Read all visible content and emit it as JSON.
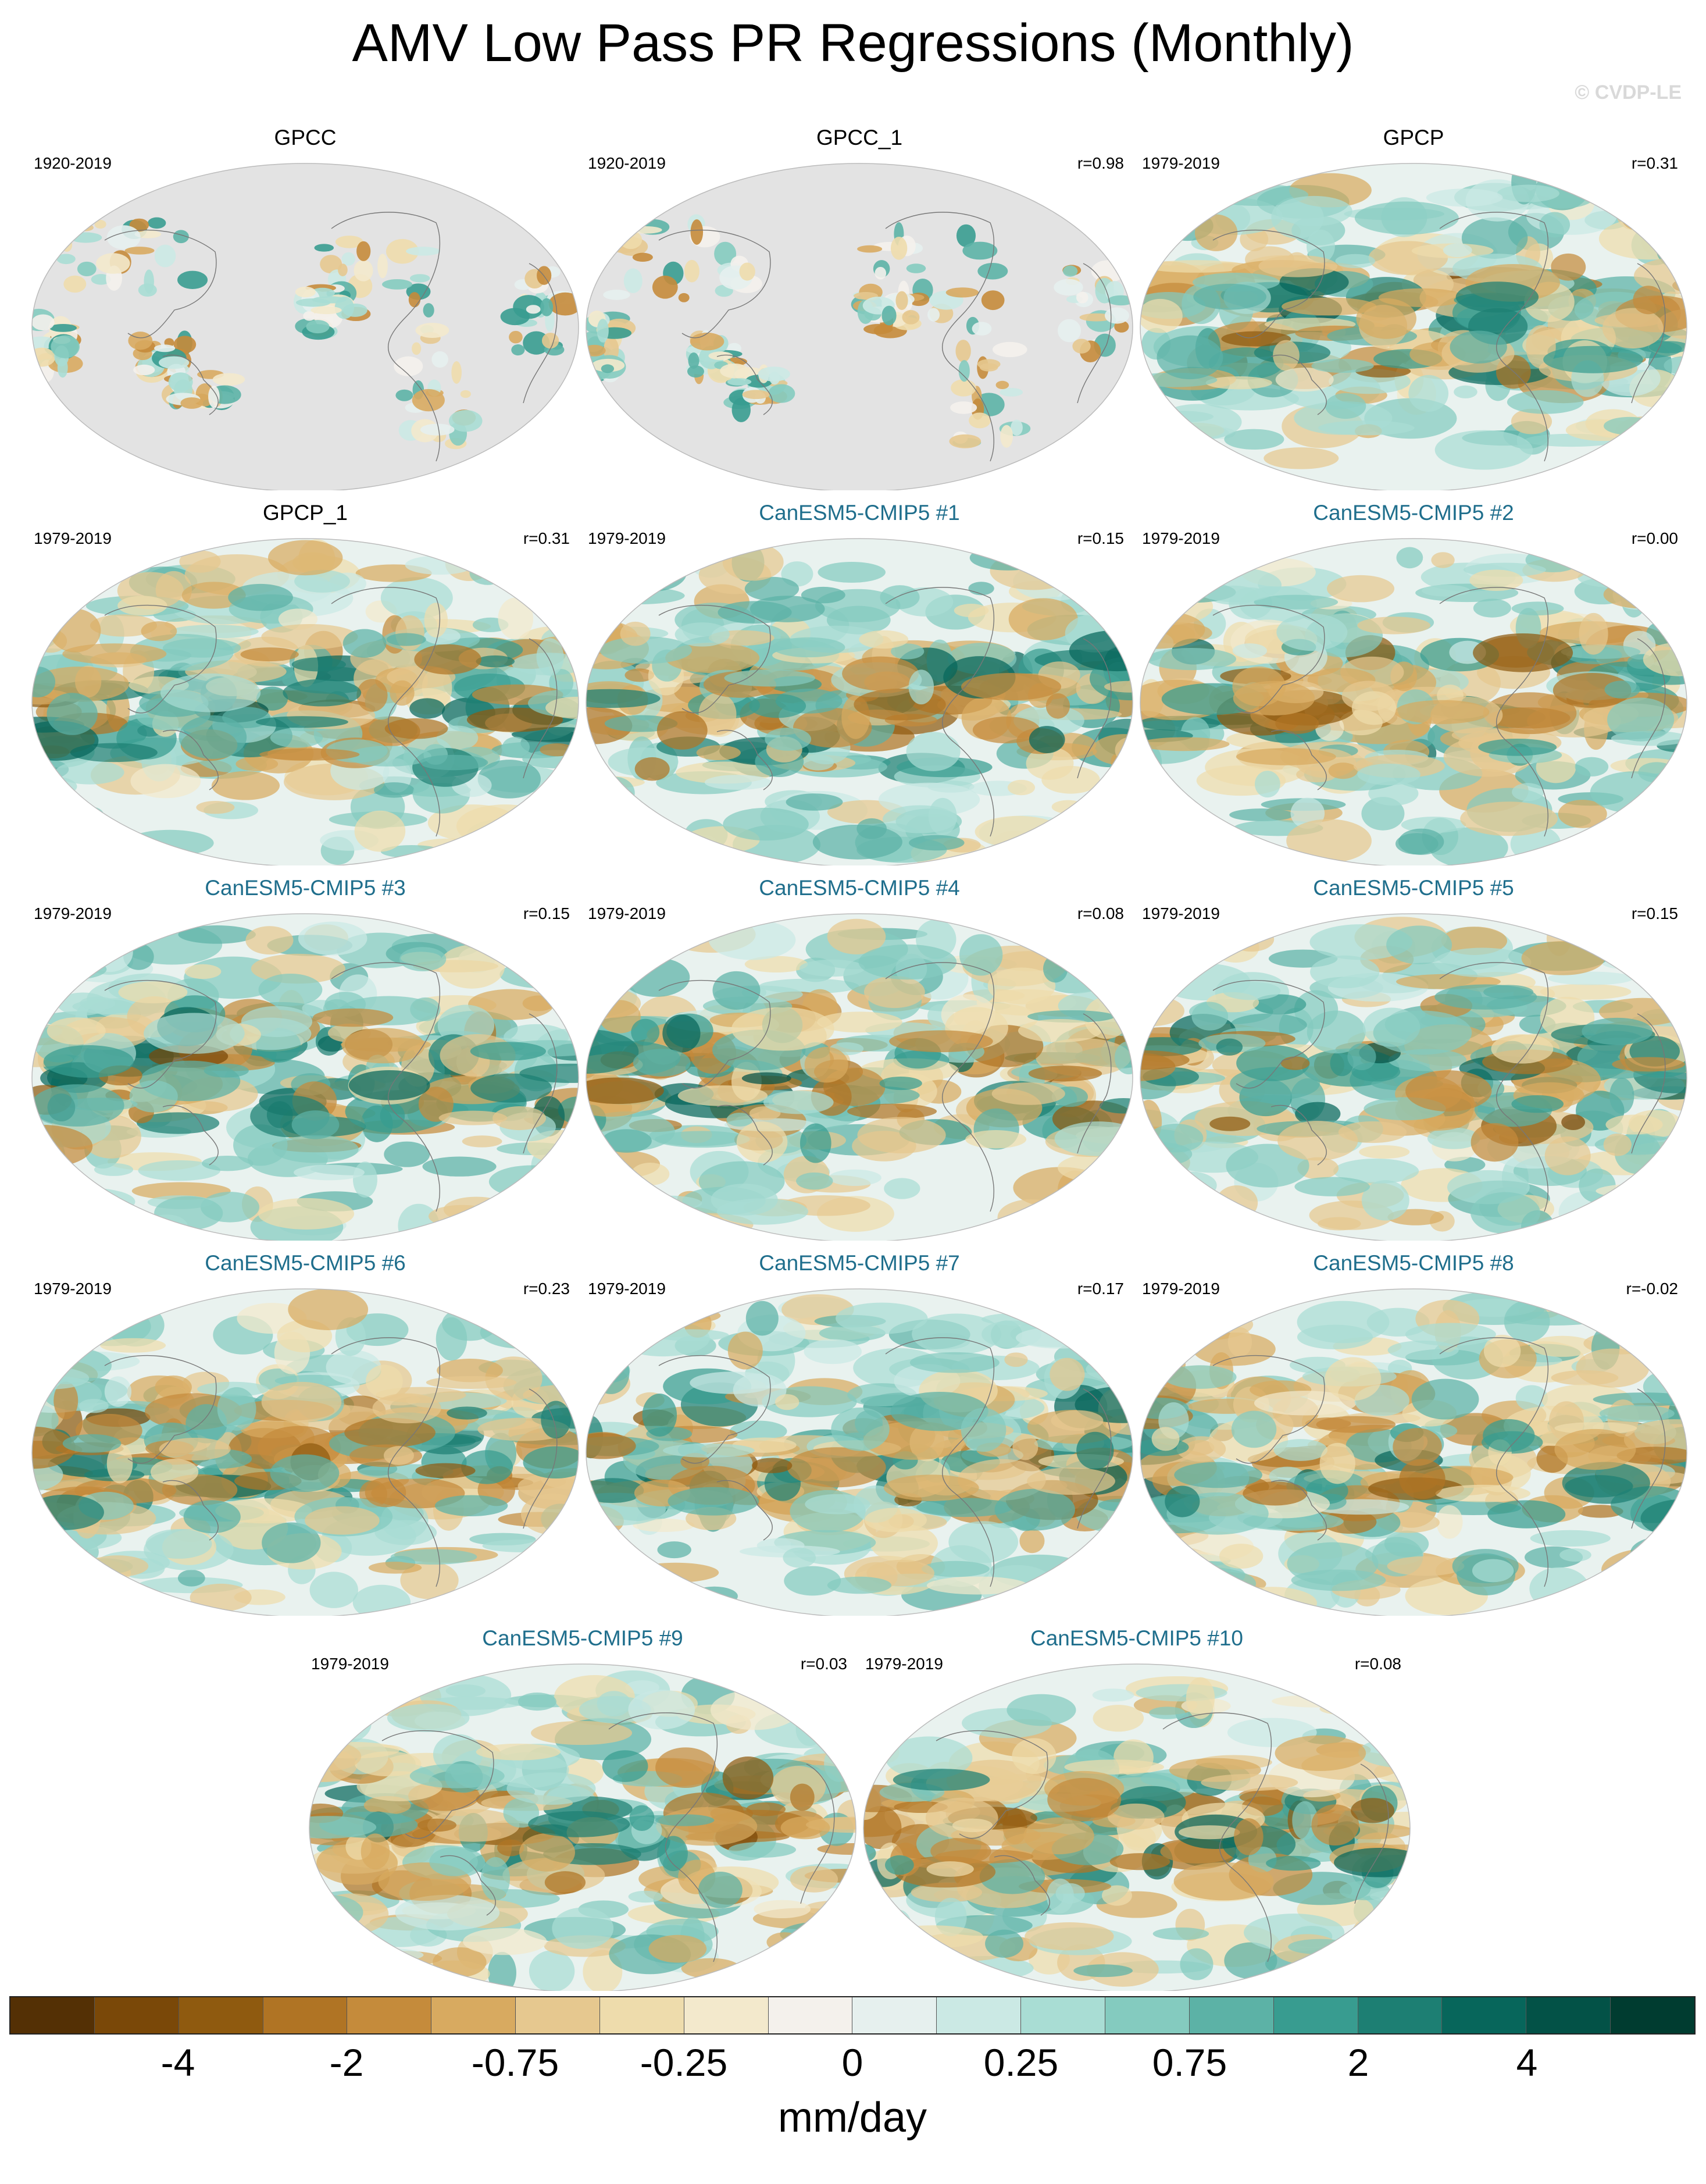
{
  "title": "AMV Low Pass PR Regressions (Monthly)",
  "watermark": "© CVDP-LE",
  "panels": [
    {
      "name": "GPCC",
      "period": "1920-2019",
      "r": "",
      "kind": "obs",
      "land_only": true
    },
    {
      "name": "GPCC_1",
      "period": "1920-2019",
      "r": "r=0.98",
      "kind": "obs",
      "land_only": true
    },
    {
      "name": "GPCP",
      "period": "1979-2019",
      "r": "r=0.31",
      "kind": "obs",
      "land_only": false
    },
    {
      "name": "GPCP_1",
      "period": "1979-2019",
      "r": "r=0.31",
      "kind": "obs",
      "land_only": false
    },
    {
      "name": "CanESM5-CMIP5 #1",
      "period": "1979-2019",
      "r": "r=0.15",
      "kind": "model",
      "land_only": false
    },
    {
      "name": "CanESM5-CMIP5 #2",
      "period": "1979-2019",
      "r": "r=0.00",
      "kind": "model",
      "land_only": false
    },
    {
      "name": "CanESM5-CMIP5 #3",
      "period": "1979-2019",
      "r": "r=0.15",
      "kind": "model",
      "land_only": false
    },
    {
      "name": "CanESM5-CMIP5 #4",
      "period": "1979-2019",
      "r": "r=0.08",
      "kind": "model",
      "land_only": false
    },
    {
      "name": "CanESM5-CMIP5 #5",
      "period": "1979-2019",
      "r": "r=0.15",
      "kind": "model",
      "land_only": false
    },
    {
      "name": "CanESM5-CMIP5 #6",
      "period": "1979-2019",
      "r": "r=0.23",
      "kind": "model",
      "land_only": false
    },
    {
      "name": "CanESM5-CMIP5 #7",
      "period": "1979-2019",
      "r": "r=0.17",
      "kind": "model",
      "land_only": false
    },
    {
      "name": "CanESM5-CMIP5 #8",
      "period": "1979-2019",
      "r": "r=-0.02",
      "kind": "model",
      "land_only": false
    },
    {
      "name": "CanESM5-CMIP5 #9",
      "period": "1979-2019",
      "r": "r=0.03",
      "kind": "model",
      "land_only": false
    },
    {
      "name": "CanESM5-CMIP5 #10",
      "period": "1979-2019",
      "r": "r=0.08",
      "kind": "model",
      "land_only": false
    }
  ],
  "colorbar": {
    "units": "mm/day",
    "labels": [
      "-4",
      "-2",
      "-0.75",
      "-0.25",
      "0",
      "0.25",
      "0.75",
      "2",
      "4"
    ],
    "colors": [
      "#543005",
      "#7a4808",
      "#8f5a0f",
      "#b07424",
      "#c58b3b",
      "#d8aa60",
      "#e6c88f",
      "#eedcac",
      "#f3e9cc",
      "#f4f1ec",
      "#e6f0ee",
      "#cbe9e4",
      "#a9ddd4",
      "#84cbbf",
      "#5cb2a6",
      "#389c90",
      "#1d7f73",
      "#07665b",
      "#035247",
      "#003c30"
    ]
  }
}
